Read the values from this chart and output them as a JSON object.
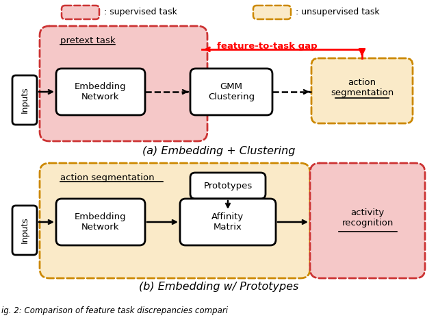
{
  "bg_color": "#ffffff",
  "legend_sup_color": "#f5c8c8",
  "legend_sup_border": "#cc3333",
  "legend_unsup_color": "#faeac8",
  "legend_unsup_border": "#cc8800",
  "pink_fill": "#f5c8c8",
  "peach_fill": "#faeac8",
  "box_fill": "#ffffff",
  "caption_a": "(a) Embedding + Clustering",
  "caption_b": "(b) Embedding w/ Prototypes",
  "gap_label": "feature-to-task gap",
  "bottom_text": "ig. 2: Comparison of feature task discrepancies compari"
}
